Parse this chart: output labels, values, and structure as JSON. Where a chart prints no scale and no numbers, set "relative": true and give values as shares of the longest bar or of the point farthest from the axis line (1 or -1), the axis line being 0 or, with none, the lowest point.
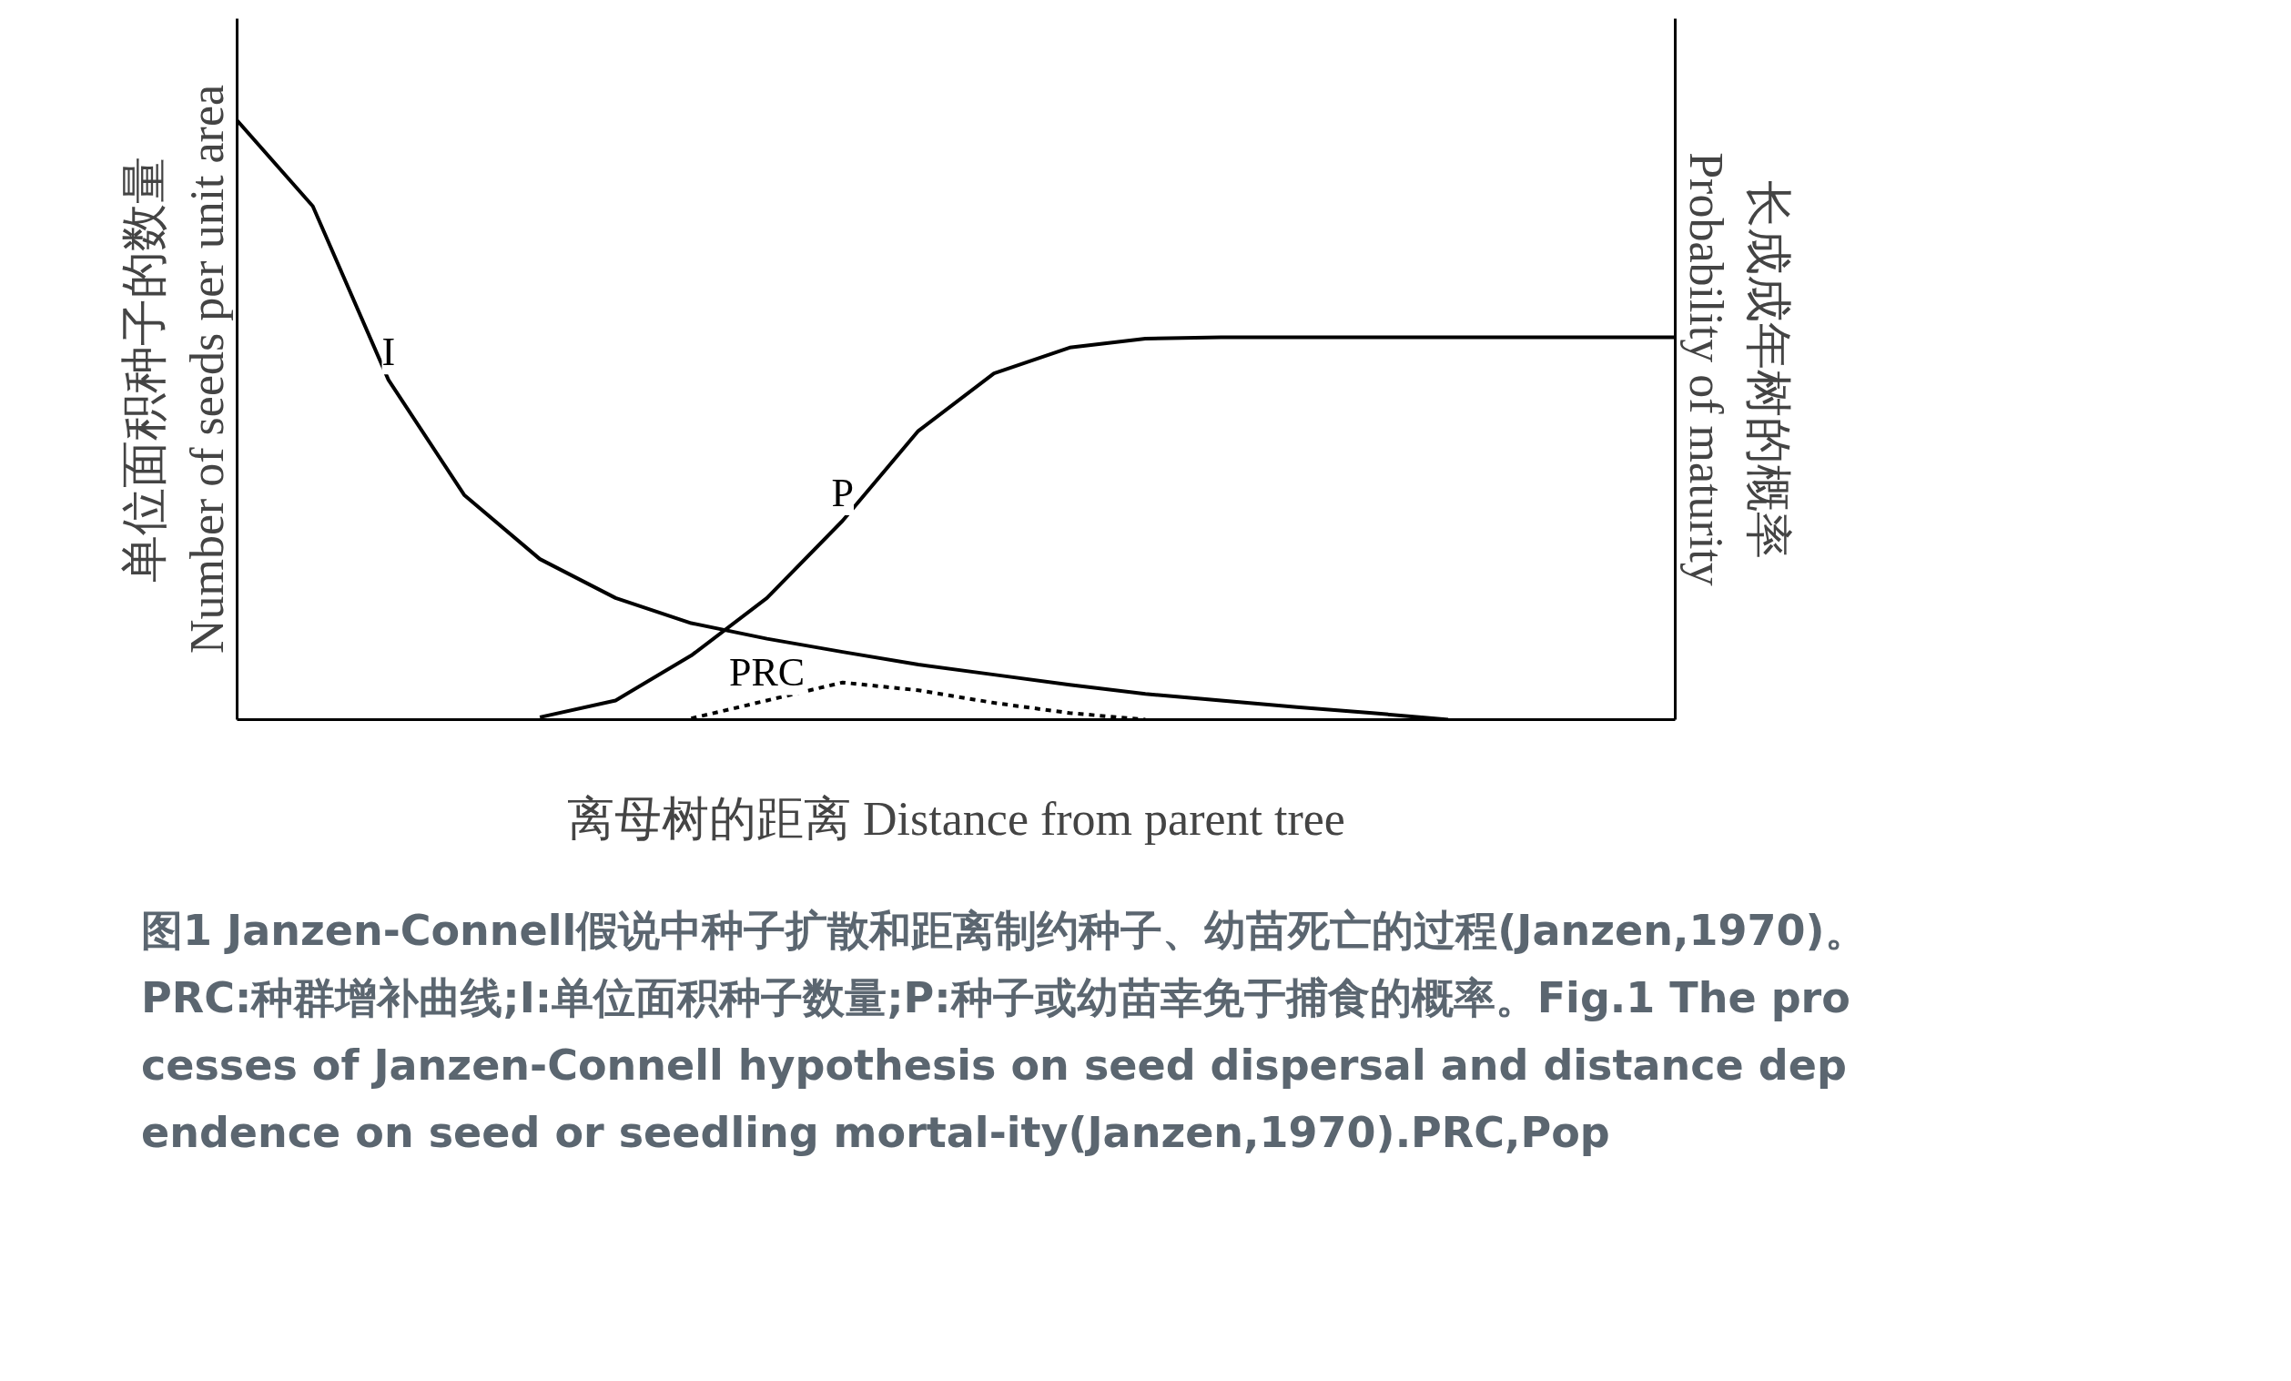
{
  "chart_data": {
    "type": "line",
    "relative": true,
    "xlabel": "离母树的距离 Distance from parent tree",
    "ylabel": "单位面积种子的数量\nNumber of seeds per unit area",
    "y2label": "长成成年树的概率\nProbability of maturity",
    "categories": [
      null,
      null,
      null,
      null,
      null,
      null,
      null,
      null,
      null,
      null,
      null,
      null,
      null,
      null,
      null,
      null,
      null,
      null,
      null,
      null
    ],
    "series": [
      {
        "name": "I",
        "color": "#000000",
        "line_style": "solid",
        "values": [
          1.0,
          0.857,
          0.567,
          0.375,
          0.268,
          0.203,
          0.161,
          0.135,
          0.113,
          0.092,
          0.075,
          0.058,
          0.043,
          0.032,
          0.021,
          0.011,
          0.0,
          null,
          null,
          null
        ]
      },
      {
        "name": "P",
        "color": "#000000",
        "line_style": "solid",
        "values": [
          null,
          null,
          null,
          null,
          0.004,
          0.032,
          0.107,
          0.203,
          0.332,
          0.482,
          0.578,
          0.621,
          0.636,
          0.638,
          0.638,
          0.638,
          0.638,
          0.638,
          0.638,
          0.638
        ]
      },
      {
        "name": "PRC",
        "color": "#000000",
        "line_style": "dashed",
        "values": [
          null,
          null,
          null,
          null,
          null,
          null,
          0.002,
          0.032,
          0.062,
          0.049,
          0.028,
          0.011,
          0.0,
          null,
          null,
          null,
          null,
          null,
          null,
          null
        ]
      }
    ],
    "annotations": [
      "图1 Janzen-Connell假说中种子扩散和距离制约种子、幼苗死亡的过程(Janzen,1970)。PRC:种群增补曲线;I:单位面积种子数量;P:种子或幼苗幸免于捕食的概率。Fig.1 The processes of Janzen-Connell hypothesis on seed dispersal and distance dependence on seed or seedling mortal-ity(Janzen,1970).PRC,Pop"
    ]
  }
}
